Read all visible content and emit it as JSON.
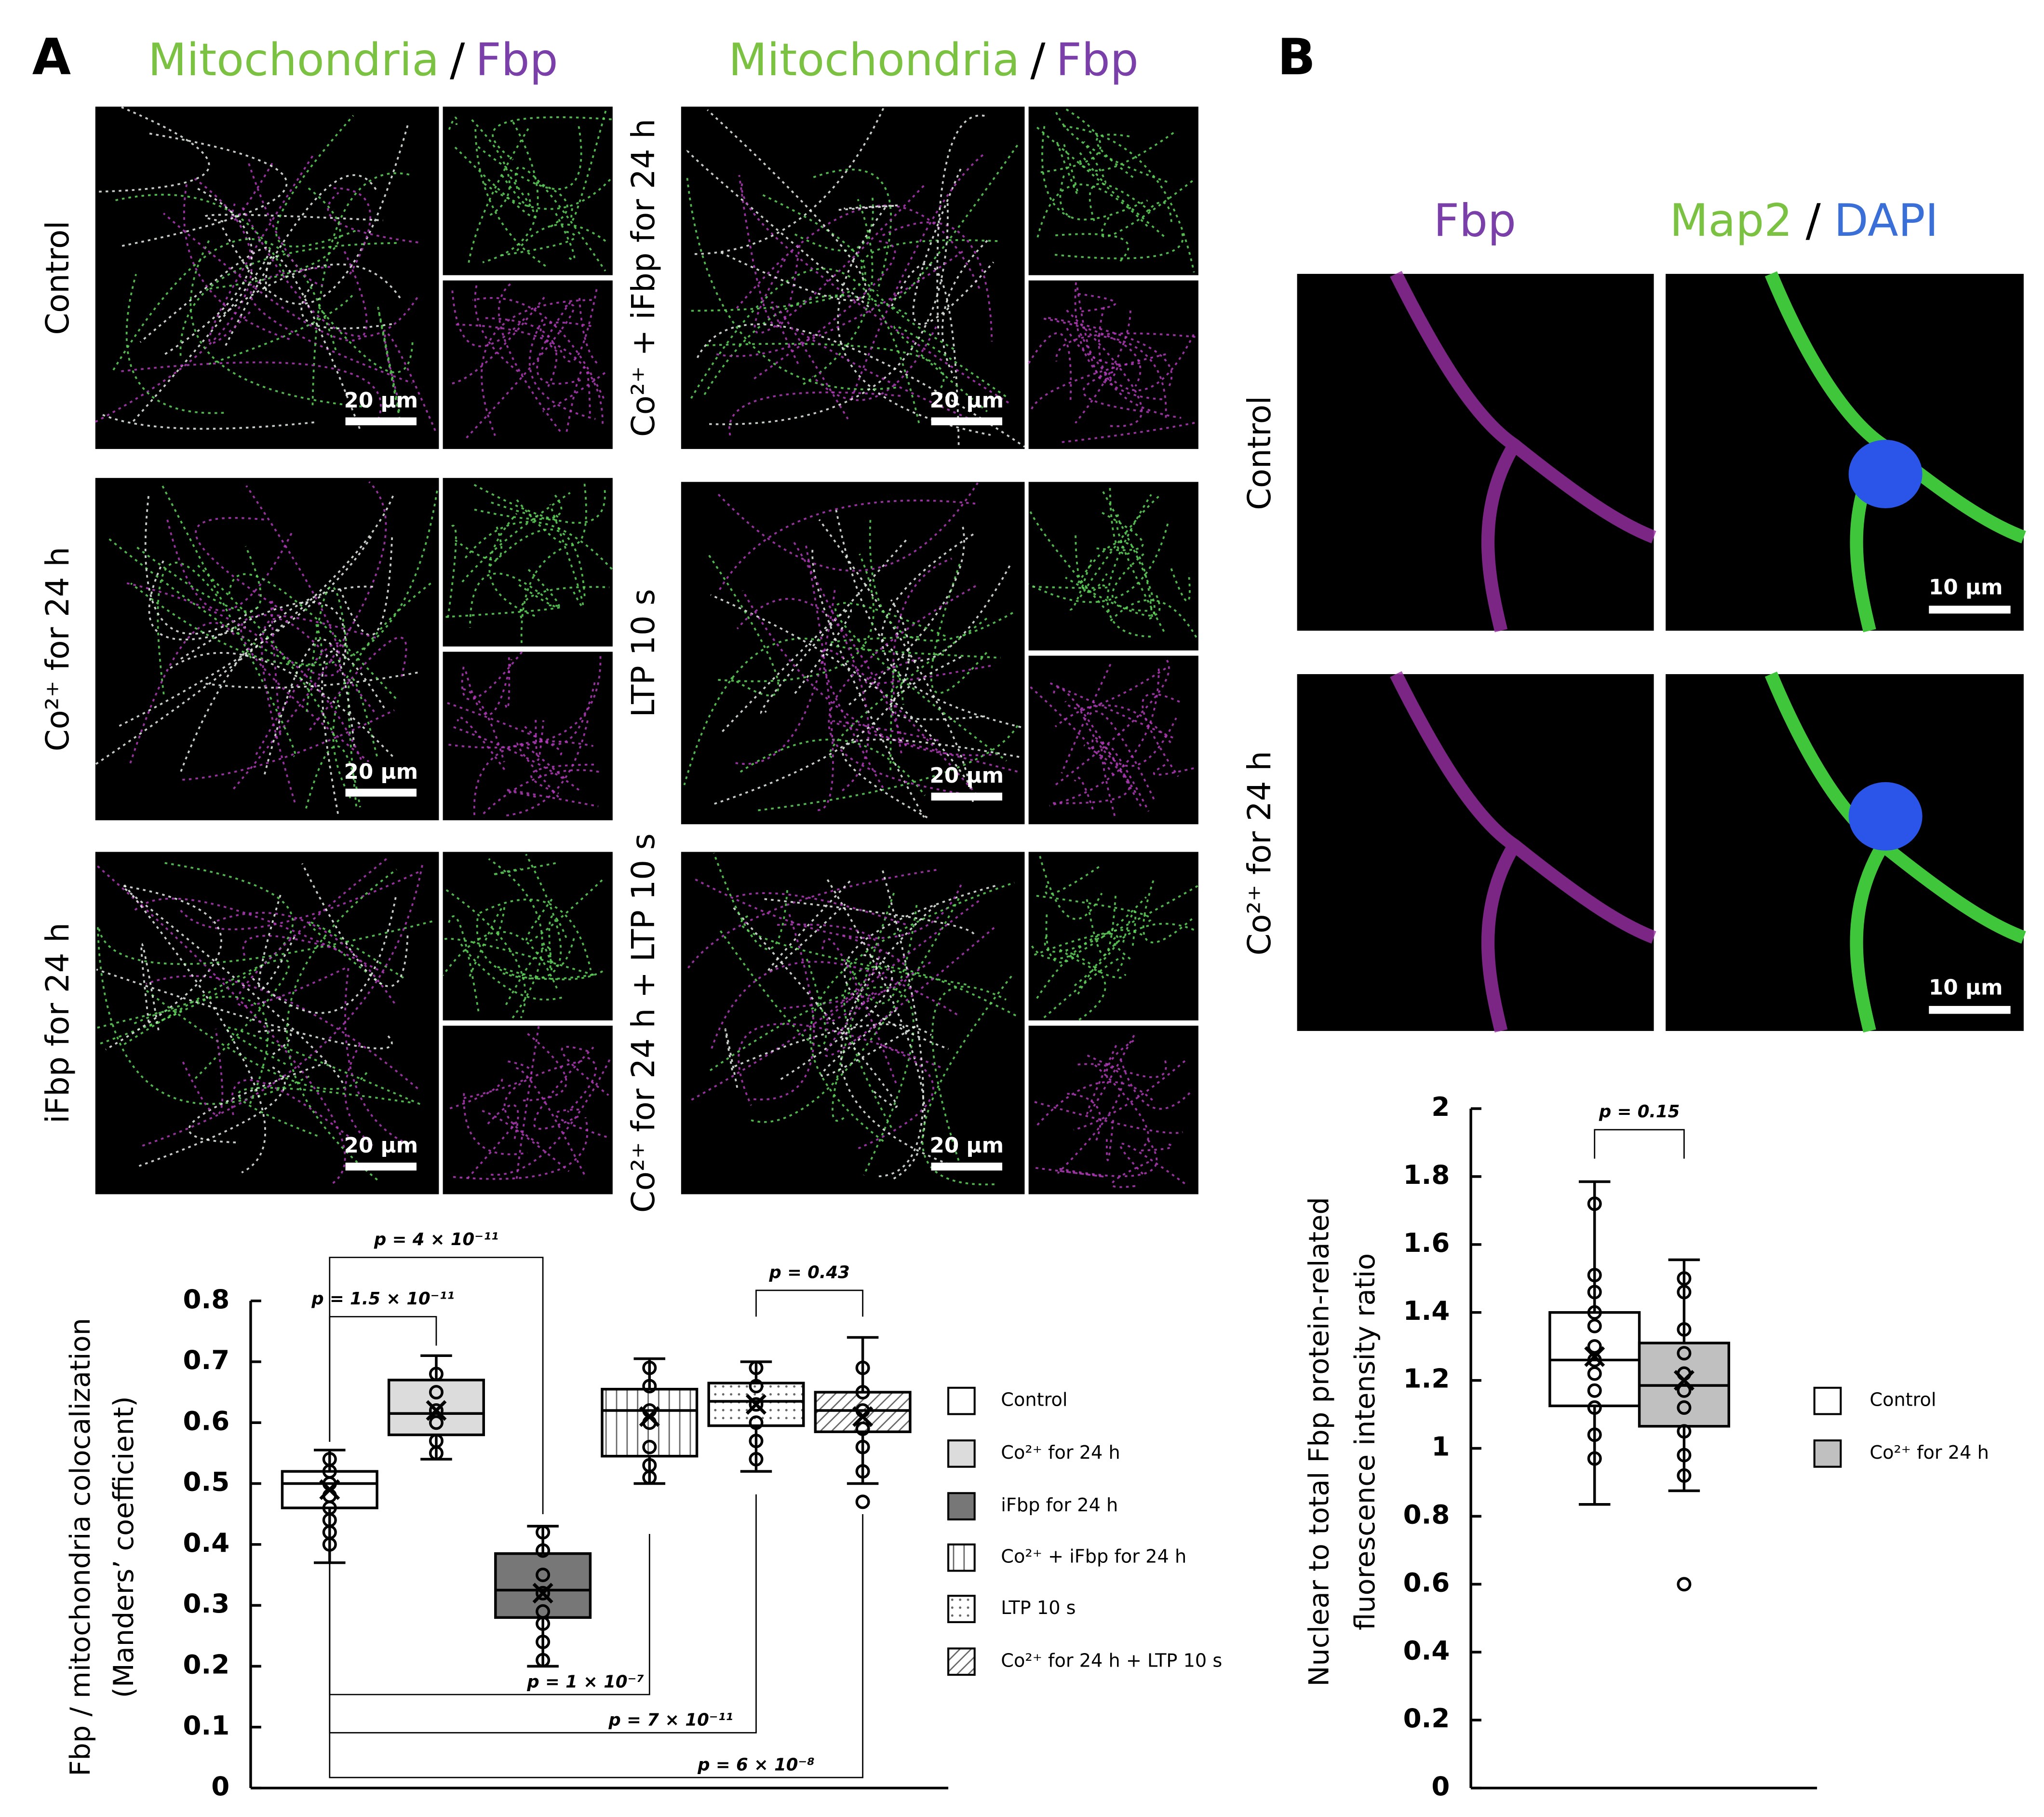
{
  "figure": {
    "panel_a": "A",
    "panel_b": "B",
    "a_headers": [
      [
        "Mitochondria",
        "/",
        "Fbp"
      ],
      [
        "Mitochondria",
        "/",
        "Fbp"
      ]
    ],
    "a_header_colors": [
      "#7cc242",
      "#000000",
      "#7a3fa8"
    ],
    "a_rows": [
      "Control",
      "Co²⁺ for 24 h",
      "iFbp for 24 h",
      "Co²⁺ + iFbp for 24 h",
      "LTP 10 s",
      "Co²⁺ for 24 h + LTP 10 s"
    ],
    "a_scale_bars": [
      "20 µm",
      "20 µm",
      "20 µm",
      "20 µm",
      "20 µm",
      "20 µm"
    ],
    "b_headers": [
      "Fbp",
      "Map2",
      "/",
      "DAPI"
    ],
    "b_header_colors": [
      "#7a3fa8",
      "#7cc242",
      "#000000",
      "#3a6fd8"
    ],
    "b_rows": [
      "Control",
      "Co²⁺ for 24 h"
    ],
    "b_scale_bars": [
      "10 µm",
      "10 µm"
    ]
  },
  "chart_data": [
    {
      "type": "box",
      "ylabel": [
        "Fbp / mitochondria colocalization",
        "(Manders’ coefficient)"
      ],
      "ylim": [
        0,
        0.8
      ],
      "yticks": [
        0,
        0.1,
        0.2,
        0.3,
        0.4,
        0.5,
        0.6,
        0.7,
        0.8
      ],
      "series": [
        {
          "name": "Control",
          "color": "#ffffff",
          "pattern": "none",
          "min": 0.37,
          "q1": 0.46,
          "median": 0.5,
          "q3": 0.52,
          "max": 0.555,
          "mean": 0.49,
          "points": [
            0.54,
            0.52,
            0.5,
            0.48,
            0.46,
            0.44,
            0.42,
            0.4
          ]
        },
        {
          "name": "Co²⁺ for 24 h",
          "color": "#dcdcdc",
          "pattern": "none",
          "min": 0.54,
          "q1": 0.58,
          "median": 0.615,
          "q3": 0.67,
          "max": 0.71,
          "mean": 0.62,
          "points": [
            0.68,
            0.65,
            0.62,
            0.6,
            0.57,
            0.55
          ]
        },
        {
          "name": "iFbp for 24 h",
          "color": "#777777",
          "pattern": "none",
          "min": 0.2,
          "q1": 0.28,
          "median": 0.325,
          "q3": 0.385,
          "max": 0.43,
          "mean": 0.32,
          "points": [
            0.42,
            0.39,
            0.35,
            0.32,
            0.29,
            0.27,
            0.24,
            0.21
          ]
        },
        {
          "name": "Co²⁺ + iFbp for 24 h",
          "color": "#ffffff",
          "pattern": "vertical",
          "min": 0.5,
          "q1": 0.545,
          "median": 0.62,
          "q3": 0.655,
          "max": 0.705,
          "mean": 0.61,
          "points": [
            0.69,
            0.66,
            0.62,
            0.6,
            0.56,
            0.53,
            0.51
          ]
        },
        {
          "name": "LTP 10 s",
          "color": "#ffffff",
          "pattern": "dots",
          "min": 0.52,
          "q1": 0.595,
          "median": 0.635,
          "q3": 0.665,
          "max": 0.7,
          "mean": 0.63,
          "points": [
            0.69,
            0.66,
            0.63,
            0.6,
            0.57,
            0.54
          ]
        },
        {
          "name": "Co²⁺ for 24 h + LTP 10 s",
          "color": "#ffffff",
          "pattern": "diagonal",
          "min": 0.5,
          "q1": 0.585,
          "median": 0.62,
          "q3": 0.65,
          "max": 0.74,
          "mean": 0.61,
          "points": [
            0.69,
            0.65,
            0.62,
            0.59,
            0.56,
            0.52
          ],
          "outliers": [
            0.47
          ]
        }
      ],
      "annotations": [
        "p = 4 × 10⁻¹¹",
        "p = 1.5 × 10⁻¹¹",
        "p = 0.43",
        "p = 1 × 10⁻⁷",
        "p = 7 × 10⁻¹¹",
        "p = 6 × 10⁻⁸"
      ]
    },
    {
      "type": "box",
      "ylabel": [
        "Nuclear to total Fbp protein-related",
        "fluorescence intensity ratio"
      ],
      "ylim": [
        0,
        2
      ],
      "yticks": [
        0,
        0.2,
        0.4,
        0.6,
        0.8,
        1,
        1.2,
        1.4,
        1.6,
        1.8,
        2
      ],
      "series": [
        {
          "name": "Control",
          "color": "#ffffff",
          "pattern": "none",
          "min": 0.835,
          "q1": 1.125,
          "median": 1.26,
          "q3": 1.4,
          "max": 1.785,
          "mean": 1.27,
          "points": [
            1.72,
            1.51,
            1.46,
            1.4,
            1.36,
            1.3,
            1.26,
            1.22,
            1.17,
            1.12,
            1.04,
            0.97
          ]
        },
        {
          "name": "Co²⁺ for 24 h",
          "color": "#c0c0c0",
          "pattern": "none",
          "min": 0.875,
          "q1": 1.065,
          "median": 1.185,
          "q3": 1.31,
          "max": 1.555,
          "mean": 1.2,
          "points": [
            1.5,
            1.46,
            1.35,
            1.28,
            1.22,
            1.17,
            1.12,
            1.05,
            0.98,
            0.92
          ],
          "outliers": [
            0.6
          ]
        }
      ],
      "annotations": [
        "p = 0.15"
      ]
    }
  ]
}
